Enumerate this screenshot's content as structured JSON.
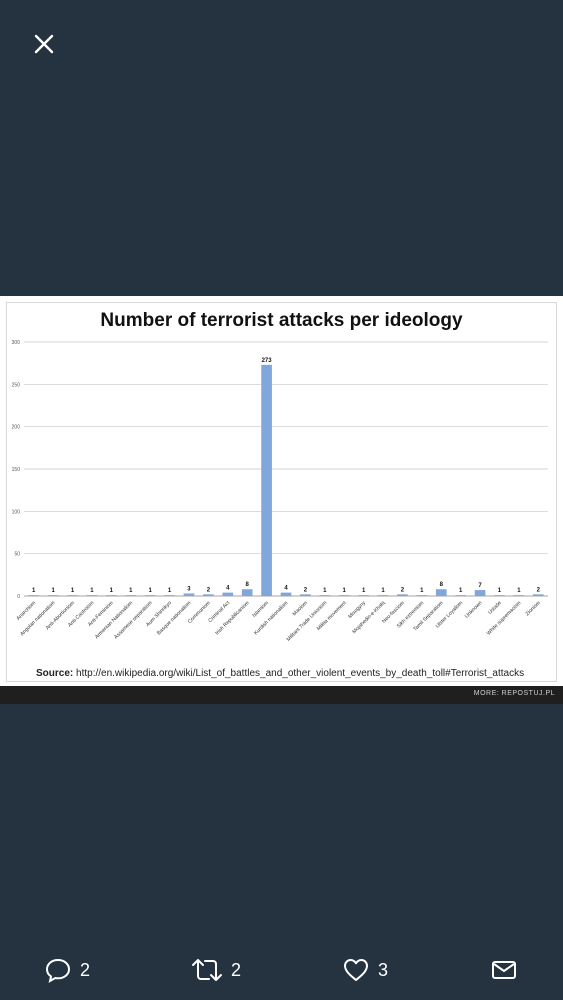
{
  "viewer": {
    "close_icon": "close-icon"
  },
  "chart_data": {
    "type": "bar",
    "title": "Number of terrorist attacks per ideology",
    "categories": [
      "Anarchism",
      "Angolan nationalism",
      "Anti-Abortionism",
      "Anti-Castroism",
      "Anti-Feminism",
      "Armenian Nationalism",
      "Assamese separatism",
      "Aum Shinrikyo",
      "Basque nationalism",
      "Communism",
      "Criminal Act",
      "Irish Republicanism",
      "Islamism",
      "Kurdish nationalism",
      "Maoism",
      "Militant Trade Unionism",
      "Militia movement",
      "Misogyny",
      "Mojahedin-e-Khalq",
      "Neo-fascism",
      "Sikh extremism",
      "Tamil Separatism",
      "Ulster Loyalism",
      "Unknown",
      "Ustaše",
      "White supremacism",
      "Zionism"
    ],
    "values": [
      1,
      1,
      1,
      1,
      1,
      1,
      1,
      1,
      3,
      2,
      4,
      8,
      273,
      4,
      2,
      1,
      1,
      1,
      1,
      2,
      1,
      8,
      1,
      7,
      1,
      1,
      2
    ],
    "yticks": [
      "0",
      "50",
      "100",
      "150",
      "200",
      "250",
      "300"
    ],
    "ylim": [
      0,
      300
    ],
    "grid": true,
    "bar_color": "#7fa7dc",
    "source_label": "Source:",
    "source_url": "http://en.wikipedia.org/wiki/List_of_battles_and_other_violent_events_by_death_toll#Terrorist_attacks"
  },
  "watermark": "MORE: REPOSTUJ.PL",
  "actions": {
    "reply": {
      "icon": "reply-icon",
      "count": "2"
    },
    "retweet": {
      "icon": "retweet-icon",
      "count": "2"
    },
    "like": {
      "icon": "heart-icon",
      "count": "3"
    },
    "share": {
      "icon": "mail-icon"
    }
  }
}
